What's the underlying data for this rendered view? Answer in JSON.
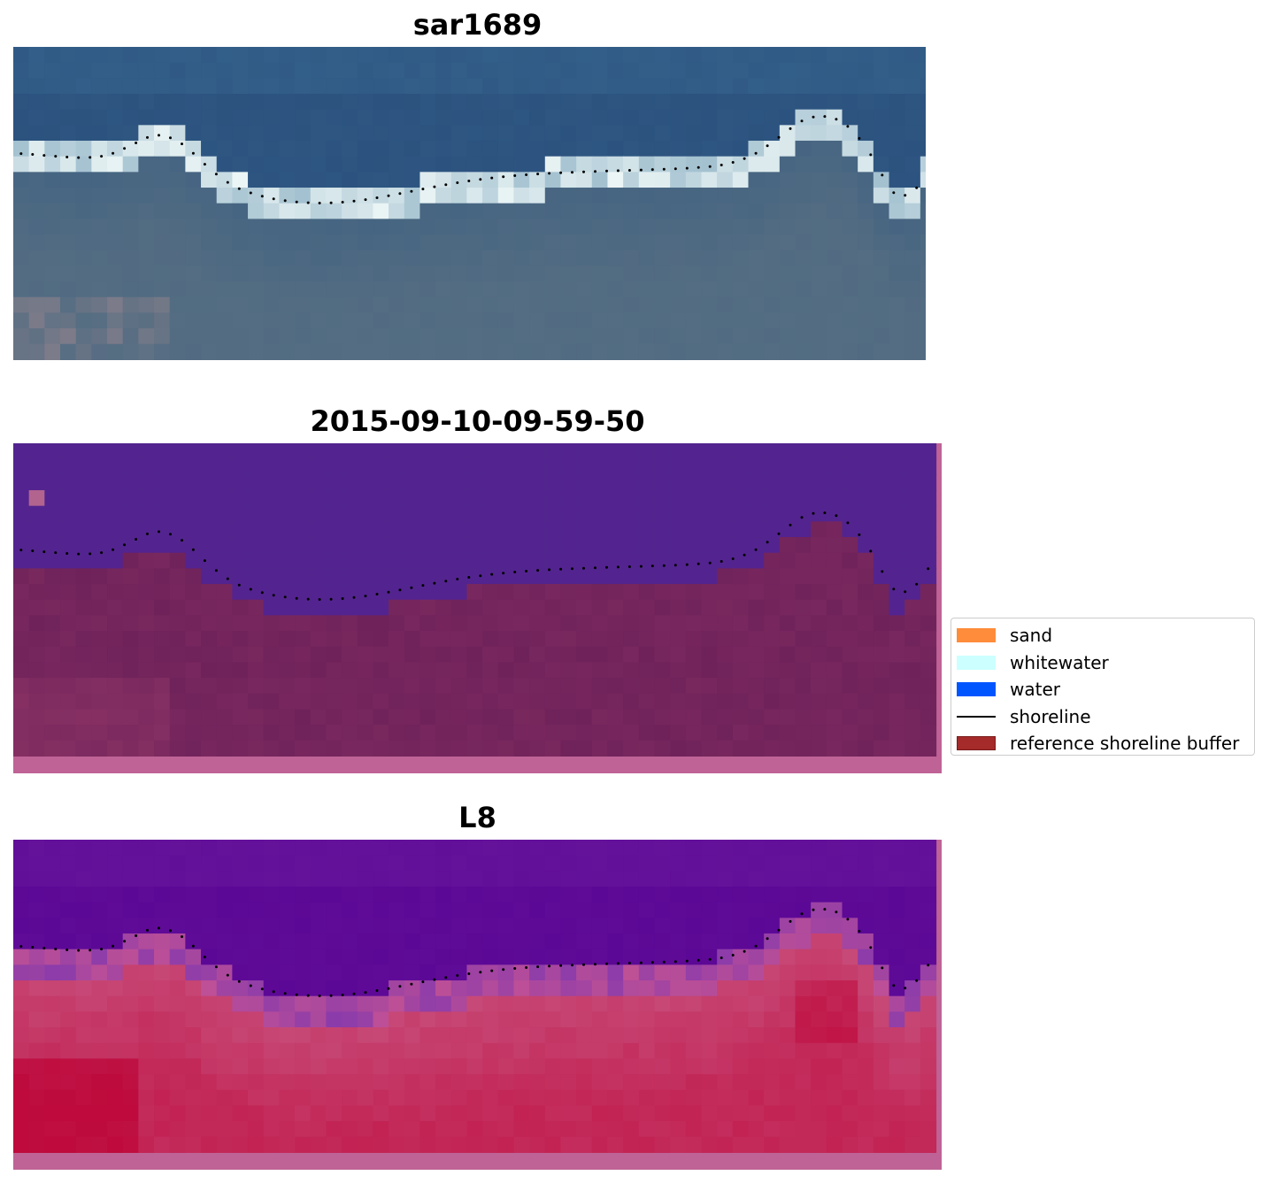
{
  "panels": [
    {
      "title": "sar1689",
      "colormap": "rgb"
    },
    {
      "title": "2015-09-10-09-59-50",
      "colormap": "classification"
    },
    {
      "title": "L8",
      "colormap": "index"
    }
  ],
  "legend": {
    "items": [
      {
        "label": "sand",
        "color": "#ff8c3a",
        "kind": "patch"
      },
      {
        "label": "whitewater",
        "color": "#ccffff",
        "kind": "patch"
      },
      {
        "label": "water",
        "color": "#0055ff",
        "kind": "patch"
      },
      {
        "label": "shoreline",
        "color": "#000000",
        "kind": "line"
      },
      {
        "label": "reference shoreline buffer",
        "color": "#a52a2a",
        "kind": "patch"
      }
    ]
  }
}
